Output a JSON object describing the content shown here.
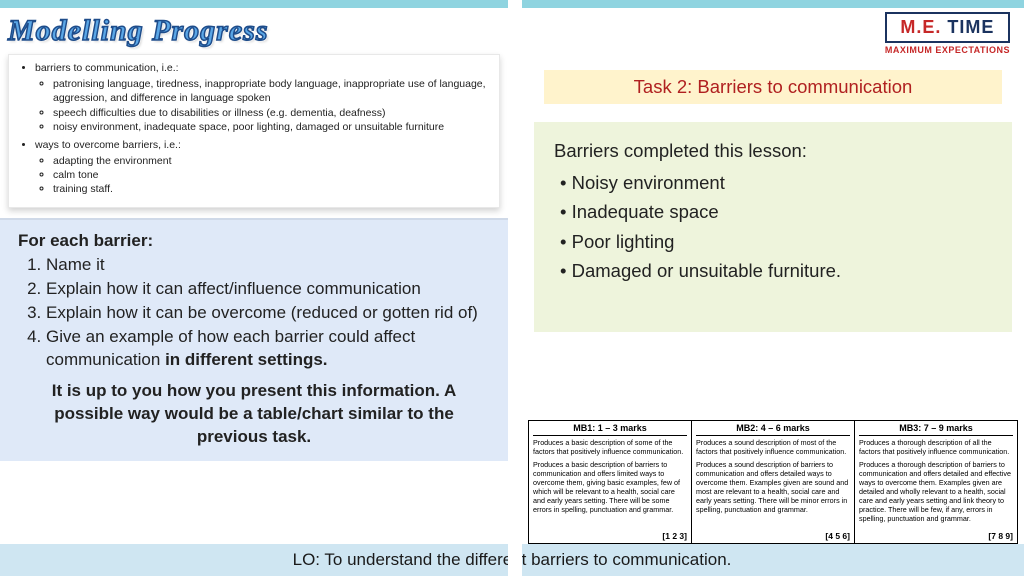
{
  "title_banner": "Modelling Progress",
  "snippet": {
    "group1_label": "barriers to communication, i.e.:",
    "group1_items": [
      "patronising language, tiredness, inappropriate body language, inappropriate use of language, aggression, and difference in language spoken",
      "speech difficulties due to disabilities or illness (e.g. dementia, deafness)",
      "noisy environment, inadequate space, poor lighting, damaged or unsuitable furniture"
    ],
    "group2_label": "ways to overcome barriers, i.e.:",
    "group2_items": [
      "adapting the environment",
      "calm tone",
      "training staff."
    ]
  },
  "instructions": {
    "lead": "For each barrier:",
    "steps": [
      "Name it",
      "Explain how it can affect/influence communication",
      "Explain how it can be overcome (reduced or gotten rid of)"
    ],
    "step4_prefix": "Give an example of how each barrier could affect communication ",
    "step4_bold": "in different settings.",
    "closing": "It is up to you how you present this information. A possible way would be a table/chart similar to the previous task."
  },
  "logo": {
    "me": "M.E.",
    "time": " TIME",
    "sub": "MAXIMUM EXPECTATIONS"
  },
  "task_title": "Task 2: Barriers to communication",
  "barriers": {
    "heading": "Barriers completed this lesson:",
    "items": [
      "Noisy environment",
      "Inadequate space",
      "Poor lighting",
      "Damaged or unsuitable furniture."
    ]
  },
  "rubric": [
    {
      "header": "MB1: 1 – 3 marks",
      "p1": "Produces a basic description of some of the factors that positively influence communication.",
      "p2": "Produces a basic description of barriers to communication and offers limited ways to overcome them, giving basic examples, few of which will be relevant to a health, social care and early years setting. There will be some errors in spelling, punctuation and grammar.",
      "footer": "[1 2 3]"
    },
    {
      "header": "MB2: 4 – 6 marks",
      "p1": "Produces a sound description of most of the factors that positively influence communication.",
      "p2": "Produces a sound description of barriers to communication and offers detailed ways to overcome them. Examples given are sound and most are relevant to a health, social care and early years setting. There will be minor errors in spelling, punctuation and grammar.",
      "footer": "[4 5 6]"
    },
    {
      "header": "MB3: 7 – 9 marks",
      "p1": "Produces a thorough description of all the factors that positively influence communication.",
      "p2": "Produces a thorough description of barriers to communication and offers detailed and effective ways to overcome them. Examples given are detailed and wholly relevant to a health, social care and early years setting and link theory to practice. There will be few, if any, errors in spelling, punctuation and grammar.",
      "footer": "[7 8 9]"
    }
  ],
  "lo": "LO: To understand the different barriers to communication.",
  "colors": {
    "top_border": "#8fd4e0",
    "instruct_bg": "#dfe9f8",
    "task_title_bg": "#fff3cc",
    "task_title_color": "#b02020",
    "barriers_bg": "#eef4dc",
    "lo_bg": "#cfe6f2"
  }
}
